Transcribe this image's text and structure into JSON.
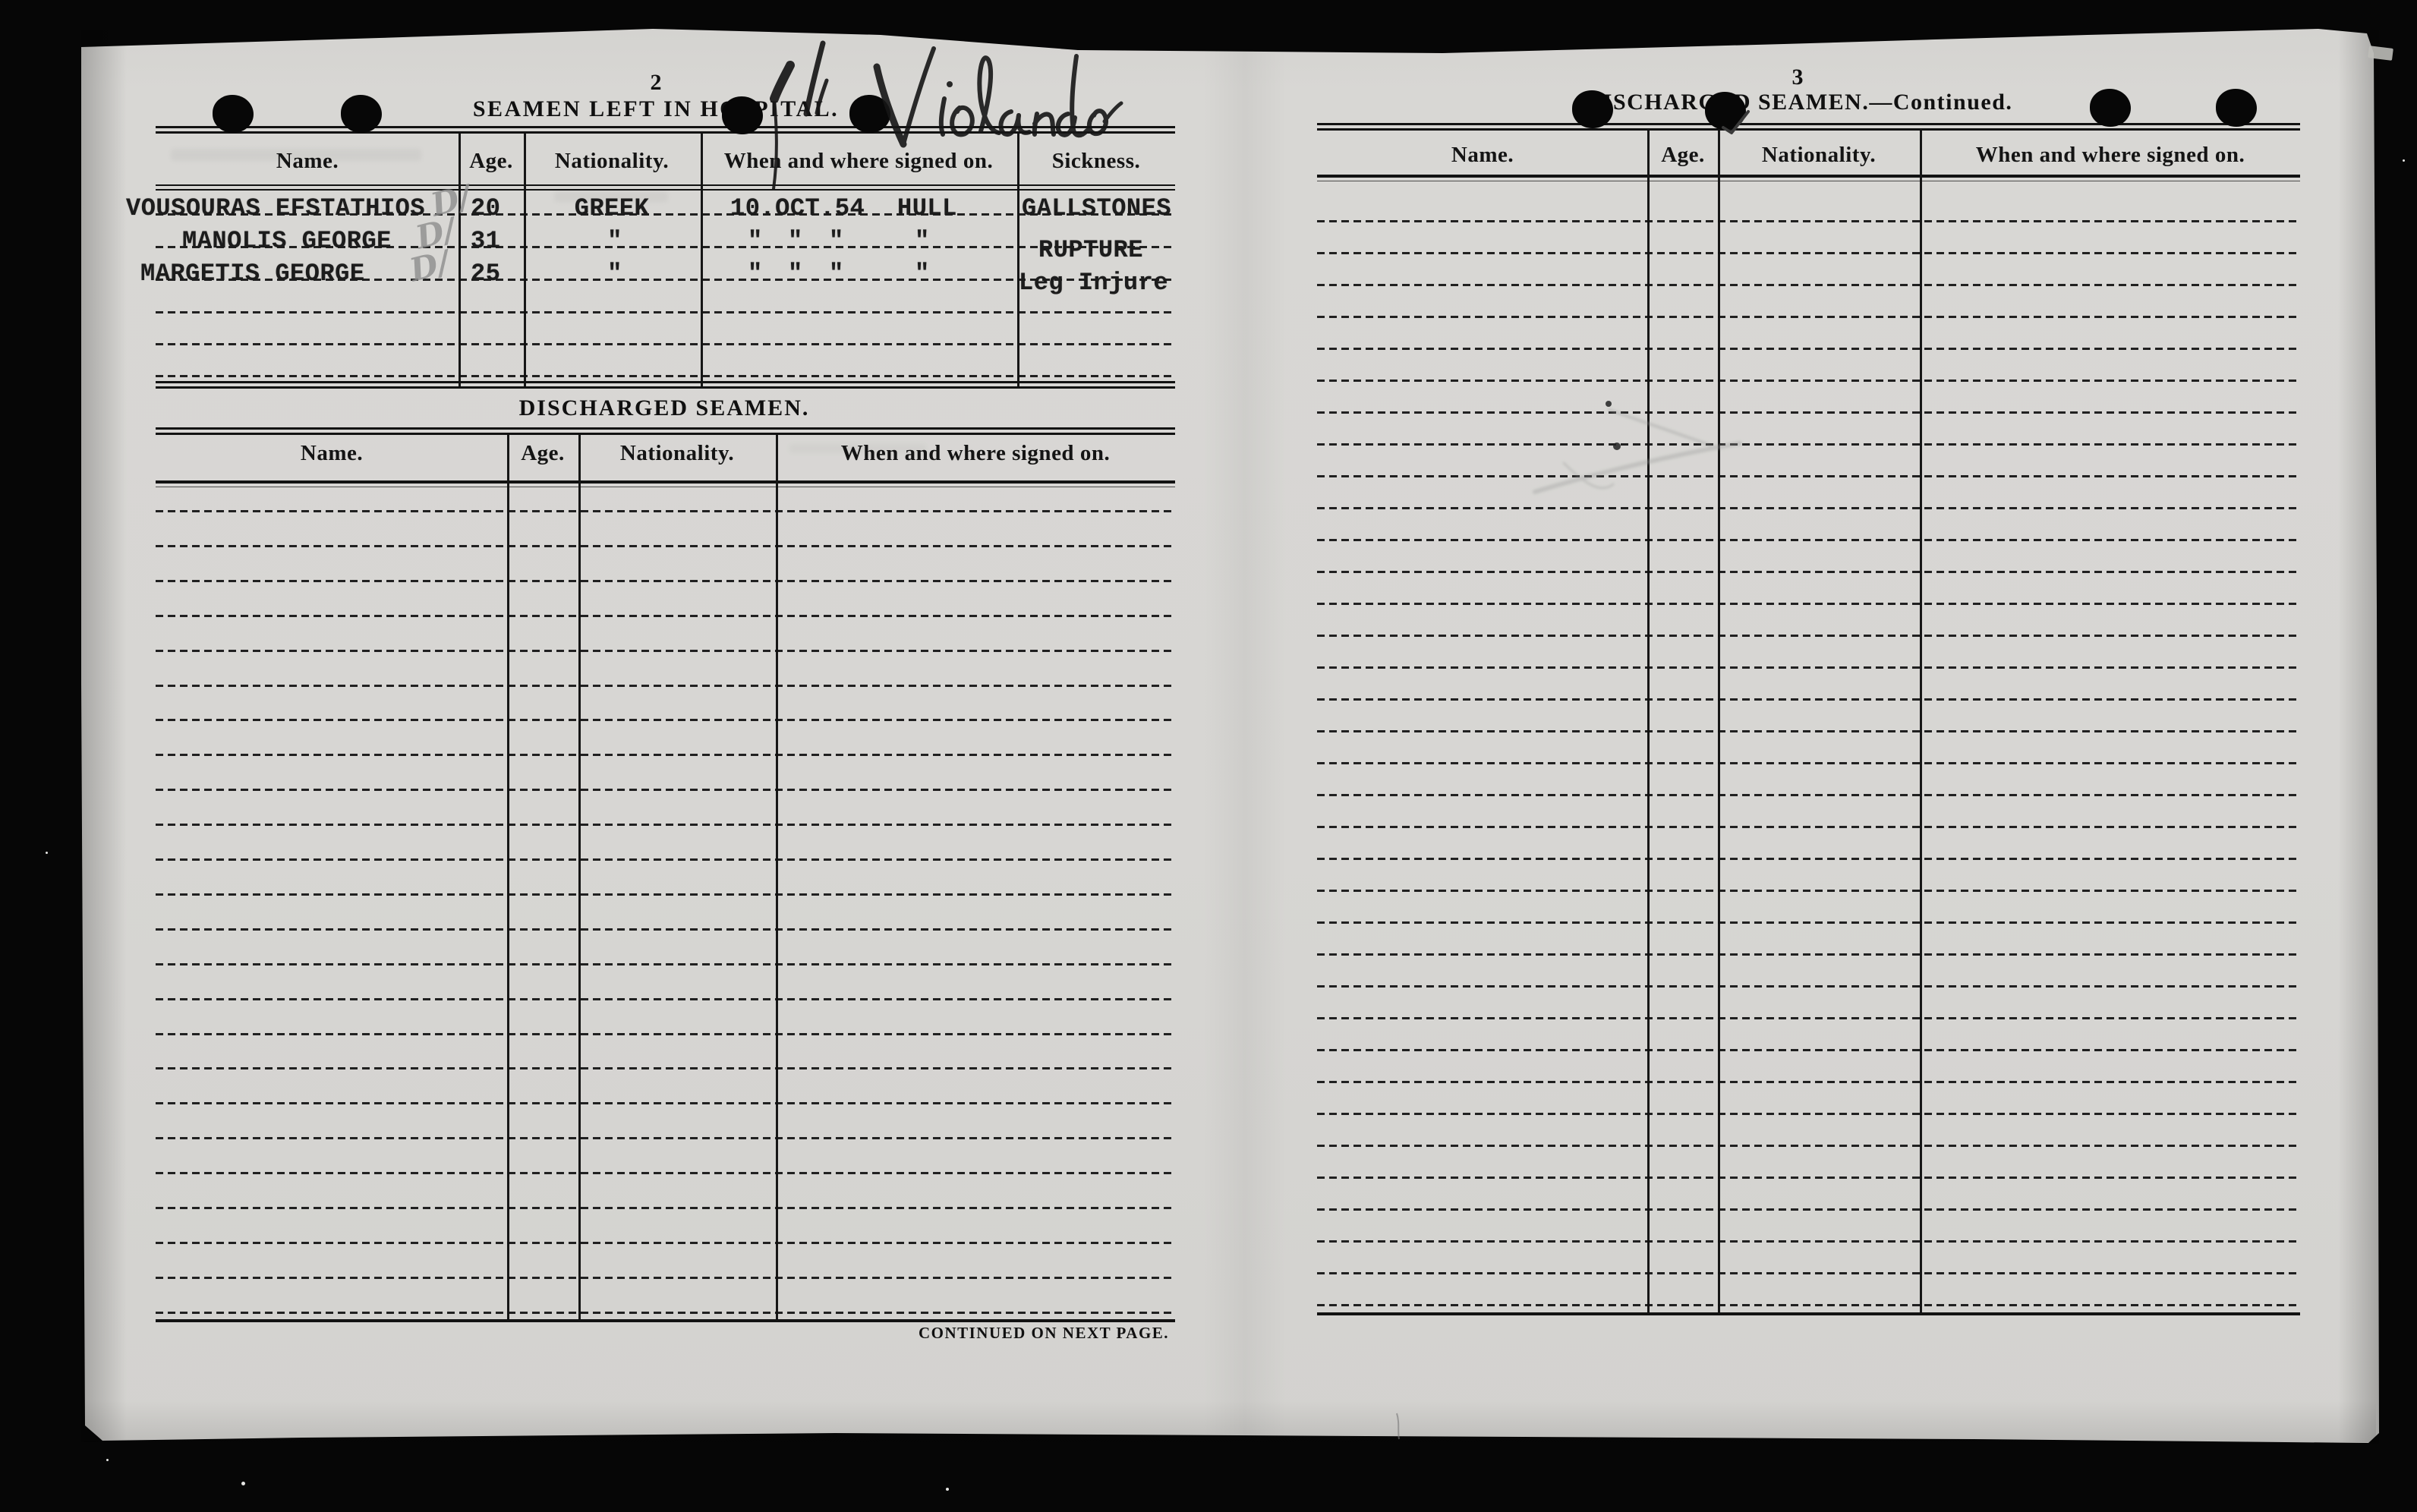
{
  "document_type": "ship crew logbook scan",
  "left_page": {
    "page_number": "2",
    "title": "SEAMEN LEFT IN HOSPITAL.",
    "handwriting": {
      "mark": "1/1",
      "ship_name": "Violando"
    },
    "hospital_table": {
      "columns": [
        "Name.",
        "Age.",
        "Nationality.",
        "When and where signed on.",
        "Sickness."
      ],
      "rows": [
        {
          "name": "VOUSOURAS EFSTATHIOS",
          "annotation": "D/",
          "age": "20",
          "nationality": "GREEK",
          "signed_on": [
            "10.OCT.54",
            "HULL"
          ],
          "sickness": "GALLSTONES"
        },
        {
          "name": "MANOLIS  GEORGE",
          "annotation": "D/",
          "age": "31",
          "nationality": "\"",
          "signed_on": [
            "\"",
            "\"",
            "\"",
            "\""
          ],
          "sickness": "RUPTURE"
        },
        {
          "name": "MARGETIS  GEORGE",
          "annotation": "D/",
          "age": "25",
          "nationality": "\"",
          "signed_on": [
            "\"",
            "\"",
            "\"",
            "\""
          ],
          "sickness": "Leg Injure"
        }
      ],
      "empty_rows": 3
    },
    "discharged_table": {
      "title": "DISCHARGED SEAMEN.",
      "columns": [
        "Name.",
        "Age.",
        "Nationality.",
        "When and where signed on."
      ],
      "empty_rows": 24
    },
    "footer": "CONTINUED ON NEXT PAGE."
  },
  "right_page": {
    "page_number": "3",
    "title": "DISCHARGED SEAMEN.—Continued.",
    "checkmark": "✓",
    "table": {
      "columns": [
        "Name.",
        "Age.",
        "Nationality.",
        "When and where signed on."
      ],
      "empty_rows": 35
    }
  },
  "colors": {
    "paper": "#d7d6d3",
    "background": "#060606",
    "ink": "#141414",
    "pencil": "#8e8e8e"
  }
}
